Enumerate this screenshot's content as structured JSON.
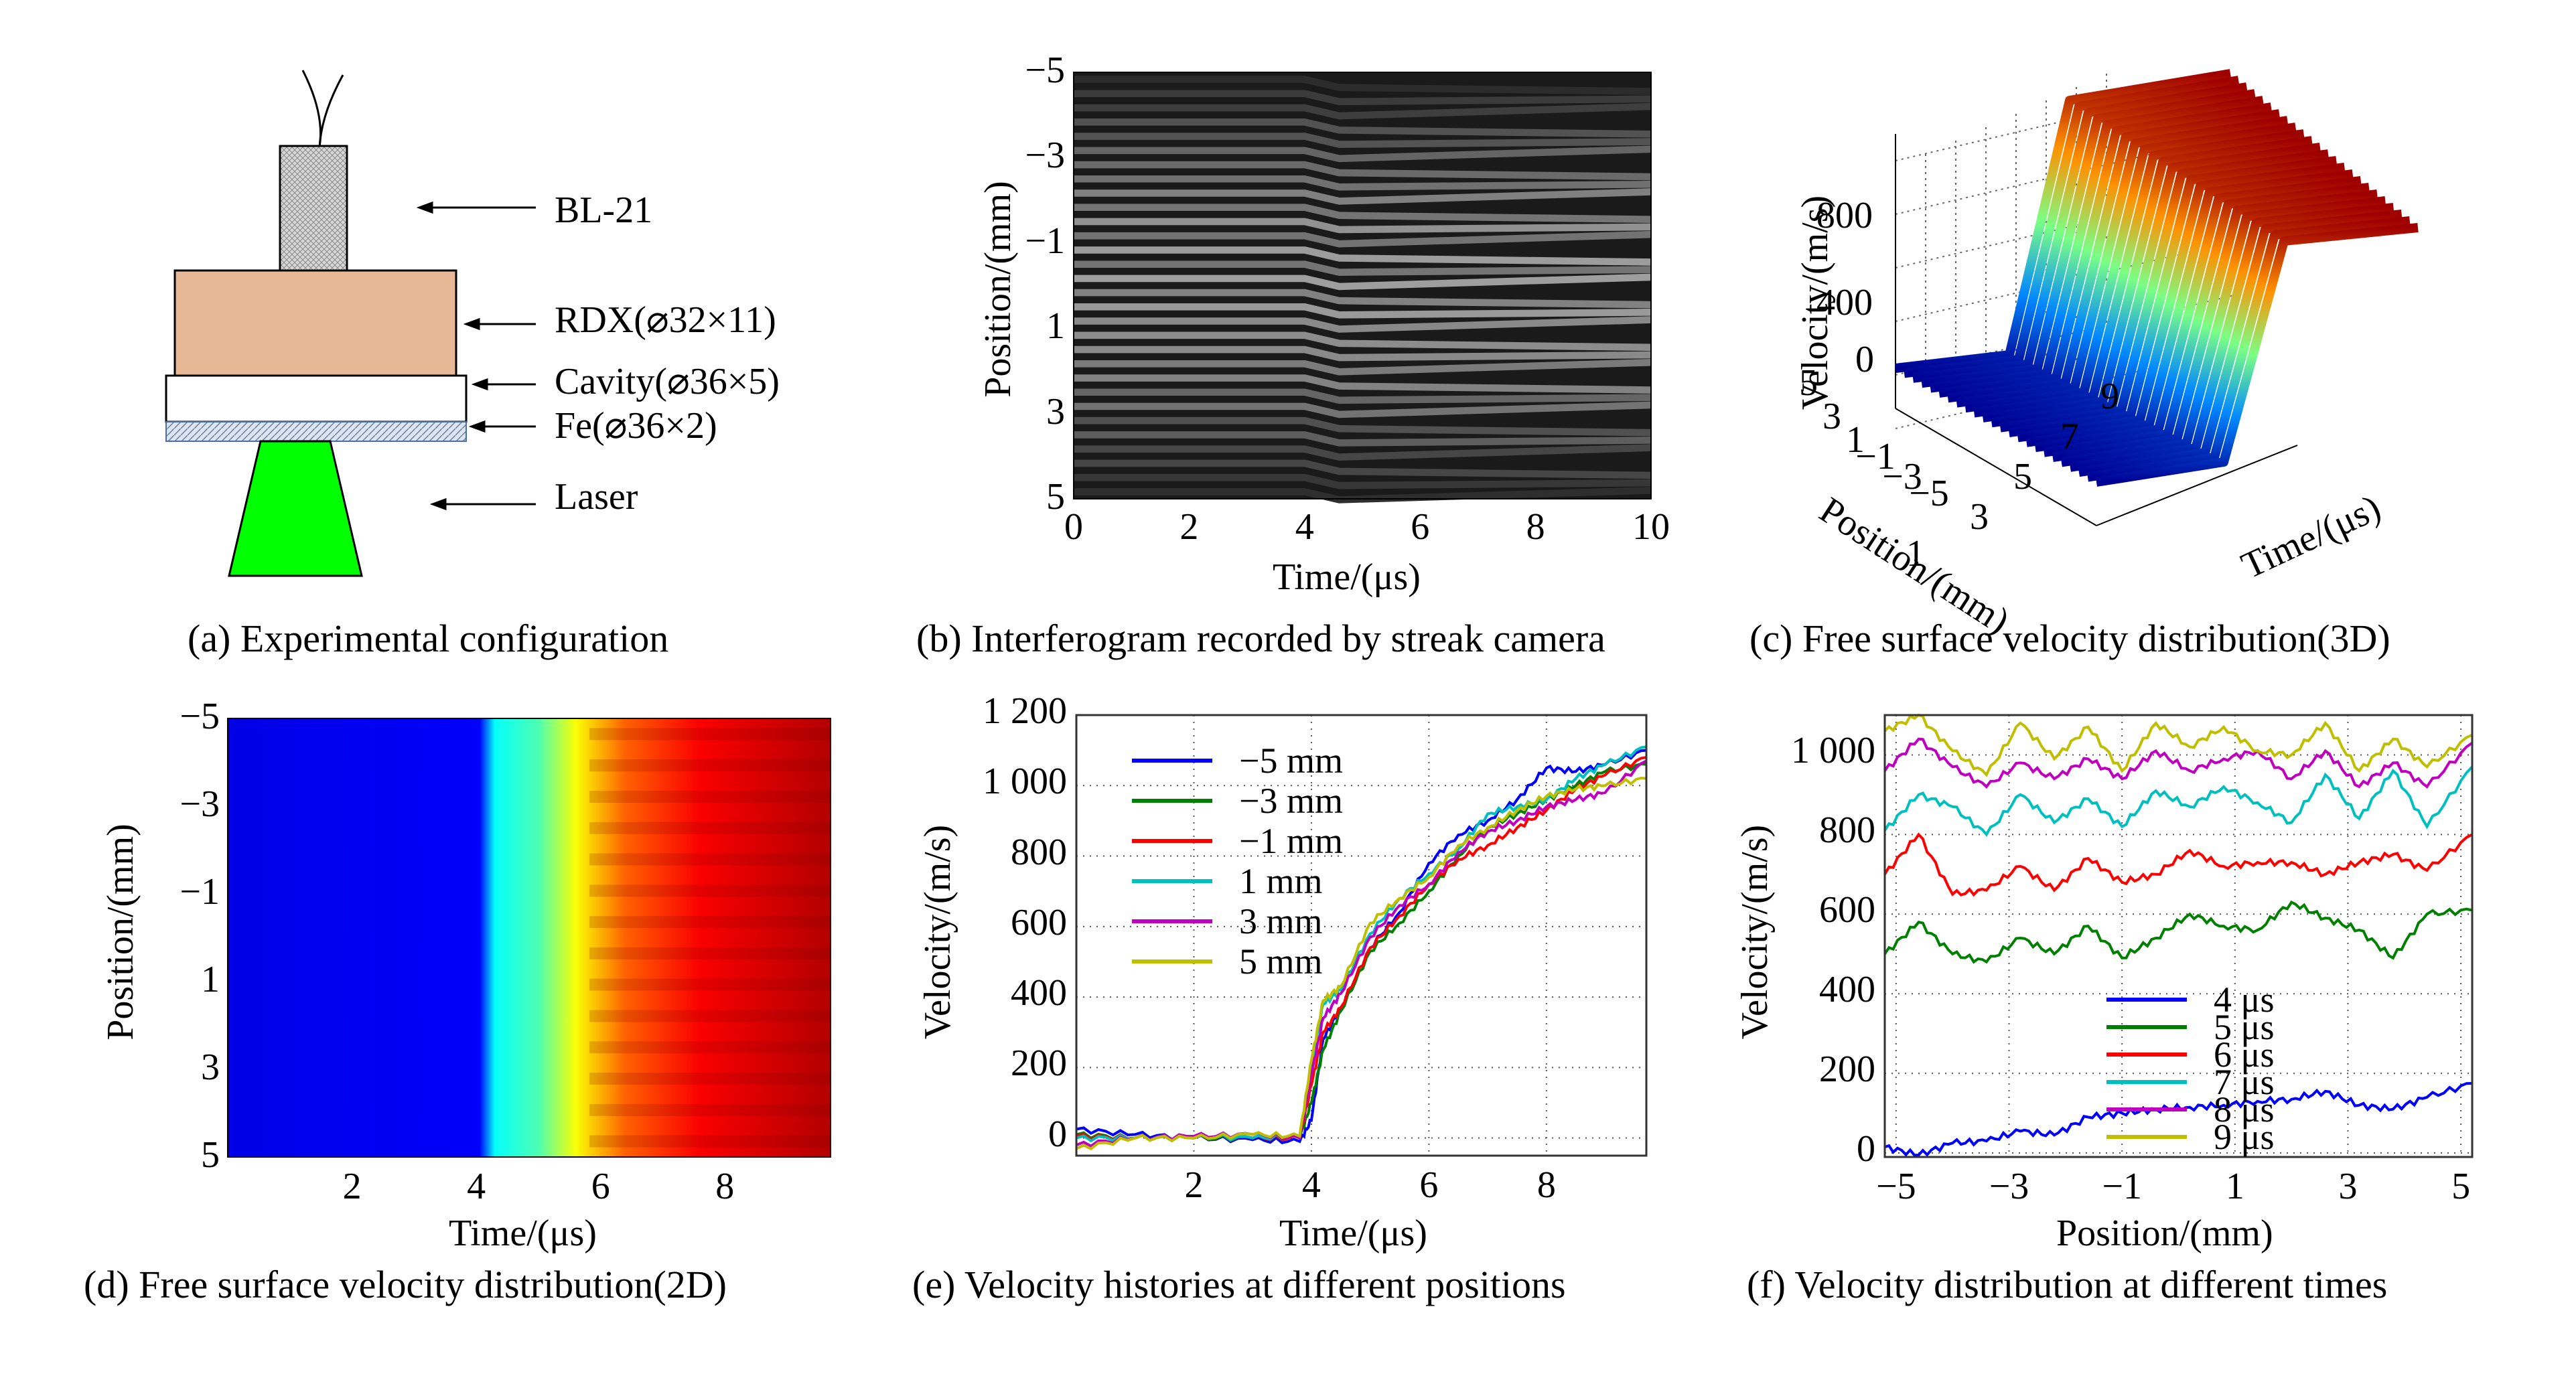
{
  "panels": {
    "a": {
      "caption": "(a) Experimental configuration",
      "labels": [
        "BL-21",
        "RDX(⌀32×11)",
        "Cavity(⌀36×5)",
        "Fe(⌀36×2)",
        "Laser"
      ],
      "colors": {
        "detonator": "#c8c8c8",
        "rdx": "#e6b896",
        "cavity": "#ffffff",
        "fe": "#b8c8e0",
        "laser": "#00ff00"
      }
    },
    "b": {
      "caption": "(b) Interferogram recorded by streak camera"
    },
    "c": {
      "caption": "(c) Free surface velocity distribution(3D)"
    },
    "d": {
      "caption": "(d) Free surface velocity distribution(2D)"
    },
    "e": {
      "caption": "(e) Velocity histories at different positions"
    },
    "f": {
      "caption": "(f) Velocity distribution at different times"
    }
  },
  "chart_data": [
    {
      "id": "b",
      "type": "heatmap",
      "title": "Interferogram recorded by streak camera",
      "xlabel": "Time/(μs)",
      "ylabel": "Position/(mm)",
      "xlim": [
        0,
        10
      ],
      "ylim": [
        -5,
        5
      ],
      "xticks": [
        "0",
        "2",
        "4",
        "6",
        "8",
        "10"
      ],
      "yticks": [
        "−5",
        "−3",
        "−1",
        "1",
        "3",
        "5"
      ],
      "colormap": "gray",
      "notes": "horizontal interference fringes, shifted/bent at t≈4 μs"
    },
    {
      "id": "c",
      "type": "heatmap",
      "title": "Free surface velocity distribution(3D)",
      "xlabel": "Time/(μs)",
      "ylabel": "Position/(mm)",
      "zlabel": "Velocity/(m/s)",
      "xticks": [
        "1",
        "3",
        "5",
        "7",
        "9"
      ],
      "yticks": [
        "5",
        "3",
        "1",
        "−1",
        "−3",
        "−5"
      ],
      "zticks": [
        "0",
        "400",
        "800"
      ],
      "colormap": "jet",
      "notes": "surface plot: ~0 m/s before 4 μs, rises to ~1000 m/s by 9 μs"
    },
    {
      "id": "d",
      "type": "heatmap",
      "title": "Free surface velocity distribution(2D)",
      "xlabel": "Time/(μs)",
      "ylabel": "Position/(mm)",
      "xlim": [
        0,
        9.7
      ],
      "ylim": [
        -5,
        5
      ],
      "xticks": [
        "2",
        "4",
        "6",
        "8"
      ],
      "yticks": [
        "−5",
        "−3",
        "−1",
        "1",
        "3",
        "5"
      ],
      "colormap": "jet",
      "transition_time": 4.1
    },
    {
      "id": "e",
      "type": "line",
      "title": "Velocity histories at different positions",
      "xlabel": "Time/(μs)",
      "ylabel": "Velocity/(m/s)",
      "xlim": [
        0,
        9.7
      ],
      "ylim": [
        -50,
        1200
      ],
      "xticks": [
        2,
        4,
        6,
        8
      ],
      "yticks": [
        0,
        200,
        400,
        600,
        800,
        1000,
        1200
      ],
      "ytick_labels": [
        "0",
        "200",
        "400",
        "600",
        "800",
        "1 000",
        "1 200"
      ],
      "grid": true,
      "legend": "top-left",
      "x": [
        0,
        1,
        2,
        3,
        3.8,
        4.0,
        4.2,
        4.5,
        5.0,
        5.5,
        6.0,
        6.5,
        7.0,
        7.5,
        8.0,
        8.5,
        9.0,
        9.7
      ],
      "series": [
        {
          "name": "−5 mm",
          "color": "#0000ff",
          "values": [
            25,
            10,
            0,
            -5,
            -10,
            50,
            280,
            370,
            540,
            640,
            780,
            860,
            900,
            960,
            1050,
            1040,
            1060,
            1100
          ]
        },
        {
          "name": "−3 mm",
          "color": "#008000",
          "values": [
            10,
            0,
            0,
            0,
            0,
            100,
            250,
            360,
            530,
            610,
            700,
            800,
            880,
            920,
            960,
            1000,
            1040,
            1060
          ]
        },
        {
          "name": "−1 mm",
          "color": "#ff0000",
          "values": [
            5,
            0,
            5,
            0,
            0,
            150,
            300,
            370,
            540,
            630,
            720,
            790,
            830,
            880,
            930,
            990,
            1030,
            1080
          ]
        },
        {
          "name": "1 mm",
          "color": "#00bfbf",
          "values": [
            0,
            0,
            5,
            0,
            5,
            200,
            380,
            420,
            580,
            680,
            750,
            820,
            920,
            940,
            960,
            1020,
            1060,
            1110
          ]
        },
        {
          "name": "3 mm",
          "color": "#bf00bf",
          "values": [
            -20,
            0,
            5,
            10,
            0,
            180,
            340,
            410,
            570,
            660,
            720,
            810,
            870,
            900,
            940,
            960,
            980,
            1070
          ]
        },
        {
          "name": "5 mm",
          "color": "#bfbf00",
          "values": [
            -30,
            0,
            0,
            10,
            5,
            220,
            390,
            430,
            610,
            680,
            740,
            830,
            880,
            930,
            970,
            990,
            1000,
            1020
          ]
        }
      ]
    },
    {
      "id": "f",
      "type": "line",
      "title": "Velocity distribution at different times",
      "xlabel": "Position/(mm)",
      "ylabel": "Velocity/(m/s)",
      "xlim": [
        -5.2,
        5.2
      ],
      "ylim": [
        -10,
        1100
      ],
      "xticks": [
        -5,
        -3,
        -1,
        1,
        3,
        5
      ],
      "xtick_labels": [
        "−5",
        "−3",
        "−1",
        "1",
        "3",
        "5"
      ],
      "yticks": [
        0,
        200,
        400,
        600,
        800,
        1000
      ],
      "ytick_labels": [
        "0",
        "200",
        "400",
        "600",
        "800",
        "1 000"
      ],
      "grid": true,
      "legend": "center",
      "x": [
        -5.2,
        -4.6,
        -4,
        -3.4,
        -2.8,
        -2.2,
        -1.6,
        -1,
        -0.4,
        0.2,
        0.8,
        1.4,
        2,
        2.6,
        3.2,
        3.8,
        4.4,
        5.2
      ],
      "series": [
        {
          "name": "4 μs",
          "color": "#0000ff",
          "values": [
            15,
            -5,
            25,
            30,
            55,
            45,
            90,
            100,
            110,
            115,
            120,
            130,
            135,
            155,
            120,
            110,
            140,
            175
          ]
        },
        {
          "name": "5 μs",
          "color": "#008000",
          "values": [
            500,
            580,
            500,
            480,
            540,
            500,
            570,
            490,
            540,
            600,
            570,
            560,
            630,
            590,
            560,
            490,
            600,
            610
          ]
        },
        {
          "name": "6 μs",
          "color": "#ff0000",
          "values": [
            700,
            800,
            650,
            660,
            720,
            660,
            740,
            680,
            700,
            760,
            720,
            730,
            730,
            700,
            730,
            750,
            710,
            800
          ]
        },
        {
          "name": "7 μs",
          "color": "#00bfbf",
          "values": [
            810,
            900,
            870,
            800,
            900,
            830,
            890,
            820,
            910,
            870,
            920,
            880,
            830,
            950,
            840,
            960,
            820,
            970
          ]
        },
        {
          "name": "8 μs",
          "color": "#bf00bf",
          "values": [
            960,
            1040,
            970,
            920,
            980,
            940,
            990,
            940,
            1010,
            960,
            990,
            1010,
            940,
            1010,
            920,
            980,
            920,
            1030
          ]
        },
        {
          "name": "9 μs",
          "color": "#bfbf00",
          "values": [
            1060,
            1100,
            1010,
            950,
            1080,
            990,
            1070,
            960,
            1080,
            1020,
            1070,
            1010,
            1000,
            1080,
            960,
            1040,
            970,
            1050
          ]
        }
      ]
    }
  ]
}
